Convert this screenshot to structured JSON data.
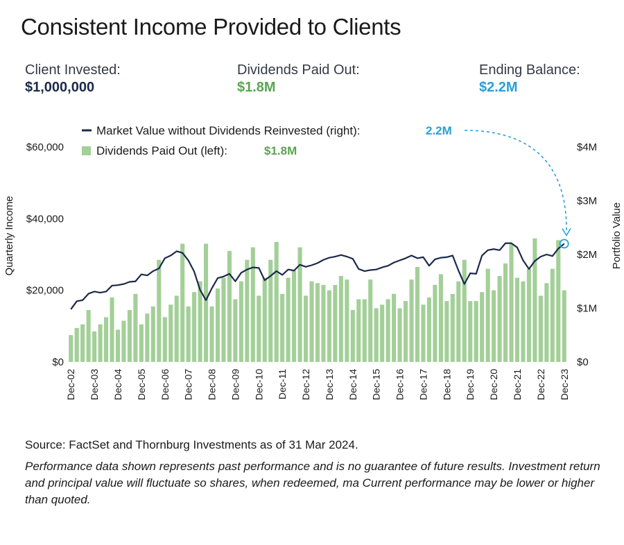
{
  "title": "Consistent Income Provided to Clients",
  "stats": {
    "invested": {
      "label": "Client Invested:",
      "value": "$1,000,000",
      "color": "#1b2a4a"
    },
    "dividends": {
      "label": "Dividends Paid Out:",
      "value": "$1.8M",
      "color": "#5aa552"
    },
    "ending": {
      "label": "Ending Balance:",
      "value": "$2.2M",
      "color": "#2a9fd6"
    }
  },
  "footer": {
    "source": "Source: FactSet and Thornburg Investments as of 31 Mar 2024.",
    "disclaimer": "Performance data shown represents past performance and is no guarantee of future results. Investment return and principal value will fluctuate so shares, when redeemed, ma  Current performance may be lower or higher than quoted."
  },
  "chart_data": {
    "type": "bar",
    "legend": [
      {
        "label": "Market Value without Dividends Reinvested (right):",
        "value": "2.2M",
        "marker": "line",
        "color": "#1b2a4a",
        "value_color": "#2a9fd6"
      },
      {
        "label": "Dividends Paid Out (left):",
        "value": "$1.8M",
        "marker": "bar",
        "color": "#a3cf98",
        "value_color": "#5aa552"
      }
    ],
    "ylabel_left": "Quarterly Income",
    "ylabel_right": "Portfolio Value",
    "ylim_left": [
      0,
      60000
    ],
    "ylim_right": [
      0,
      4000000
    ],
    "yticks_left": [
      {
        "v": 0,
        "label": "$0"
      },
      {
        "v": 20000,
        "label": "$20,000"
      },
      {
        "v": 40000,
        "label": "$40,000"
      },
      {
        "v": 60000,
        "label": "$60,000"
      }
    ],
    "yticks_right": [
      {
        "v": 0,
        "label": "$0"
      },
      {
        "v": 1000000,
        "label": "$1M"
      },
      {
        "v": 2000000,
        "label": "$2M"
      },
      {
        "v": 3000000,
        "label": "$3M"
      },
      {
        "v": 4000000,
        "label": "$4M"
      }
    ],
    "xtick_labels": [
      "Dec-02",
      "Dec-03",
      "Dec-04",
      "Dec-05",
      "Dec-06",
      "Dec-07",
      "Dec-08",
      "Dec-09",
      "Dec-10",
      "Dec-11",
      "Dec-12",
      "Dec-13",
      "Dec-14",
      "Dec-15",
      "Dec-16",
      "Dec-17",
      "Dec-18",
      "Dec-19",
      "Dec-20",
      "Dec-21",
      "Dec-22",
      "Dec-23"
    ],
    "series": [
      {
        "name": "Dividends Paid Out (left)",
        "type": "bar",
        "axis": "left",
        "color": "#a3cf98",
        "values": [
          7500,
          9500,
          10500,
          14500,
          8500,
          10500,
          12500,
          18000,
          9000,
          11500,
          14500,
          19000,
          10500,
          13500,
          15500,
          28500,
          12500,
          16000,
          18500,
          33000,
          15500,
          19500,
          22500,
          33000,
          15500,
          20500,
          23500,
          31000,
          17500,
          22500,
          28500,
          32000,
          18500,
          23500,
          28500,
          33500,
          19000,
          23500,
          25500,
          32000,
          18500,
          22500,
          22000,
          21500,
          20000,
          21500,
          24000,
          23000,
          14500,
          17500,
          17500,
          23000,
          15000,
          16000,
          17500,
          19000,
          15000,
          17000,
          23000,
          26500,
          16000,
          18000,
          21500,
          24500,
          17000,
          19000,
          22500,
          28500,
          17000,
          17000,
          19500,
          26000,
          20000,
          24000,
          27500,
          33000,
          23500,
          22500,
          26000,
          34500,
          18500,
          22000,
          26000,
          34000,
          20000
        ]
      },
      {
        "name": "Market Value without Dividends Reinvested (right)",
        "type": "line",
        "axis": "right",
        "color": "#1b2a4a",
        "values": [
          980000,
          1130000,
          1150000,
          1270000,
          1310000,
          1290000,
          1310000,
          1420000,
          1430000,
          1450000,
          1490000,
          1500000,
          1630000,
          1610000,
          1690000,
          1740000,
          1930000,
          1980000,
          2060000,
          2030000,
          1890000,
          1680000,
          1340000,
          1150000,
          1370000,
          1560000,
          1590000,
          1640000,
          1500000,
          1660000,
          1720000,
          1760000,
          1750000,
          1520000,
          1600000,
          1690000,
          1620000,
          1720000,
          1700000,
          1810000,
          1770000,
          1800000,
          1840000,
          1900000,
          1940000,
          1960000,
          1990000,
          1960000,
          1920000,
          1730000,
          1690000,
          1710000,
          1720000,
          1760000,
          1790000,
          1850000,
          1890000,
          1930000,
          1980000,
          1930000,
          1950000,
          1790000,
          1910000,
          1940000,
          1950000,
          1980000,
          1700000,
          1450000,
          1650000,
          1640000,
          1980000,
          2080000,
          2100000,
          2080000,
          2210000,
          2210000,
          2130000,
          1890000,
          1730000,
          1880000,
          1960000,
          2000000,
          1970000,
          2110000,
          2200000
        ]
      }
    ],
    "end_annotation": {
      "label": "2.2M",
      "color": "#2a9fd6"
    }
  }
}
